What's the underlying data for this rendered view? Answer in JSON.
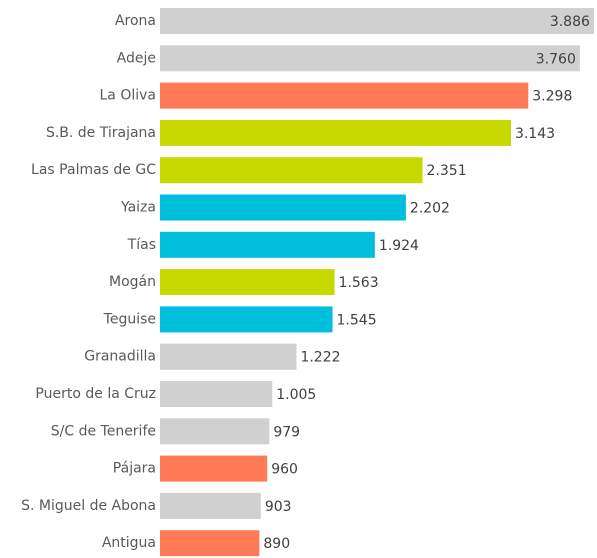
{
  "chart_data": {
    "type": "barh",
    "categories": [
      "Arona",
      "Adeje",
      "La Oliva",
      "S.B. de Tirajana",
      "Las Palmas de GC",
      "Yaiza",
      "Tías",
      "Mogán",
      "Teguise",
      "Granadilla",
      "Puerto de la Cruz",
      "S/C de Tenerife",
      "Pájara",
      "S. Miguel de Abona",
      "Antigua"
    ],
    "values": [
      3886,
      3760,
      3298,
      3143,
      2351,
      2202,
      1924,
      1563,
      1545,
      1222,
      1005,
      979,
      960,
      903,
      890
    ],
    "value_labels": [
      "3.886",
      "3.760",
      "3.298",
      "3.143",
      "2.351",
      "2.202",
      "1.924",
      "1.563",
      "1.545",
      "1.222",
      "1.005",
      "979",
      "960",
      "903",
      "890"
    ],
    "colors": [
      "#d0d0d0",
      "#d0d0d0",
      "#ff7a55",
      "#c6d800",
      "#c6d800",
      "#00bfdc",
      "#00bfdc",
      "#c6d800",
      "#00bfdc",
      "#d0d0d0",
      "#d0d0d0",
      "#d0d0d0",
      "#ff7a55",
      "#d0d0d0",
      "#ff7a55"
    ],
    "xlim": [
      0,
      3900
    ]
  }
}
